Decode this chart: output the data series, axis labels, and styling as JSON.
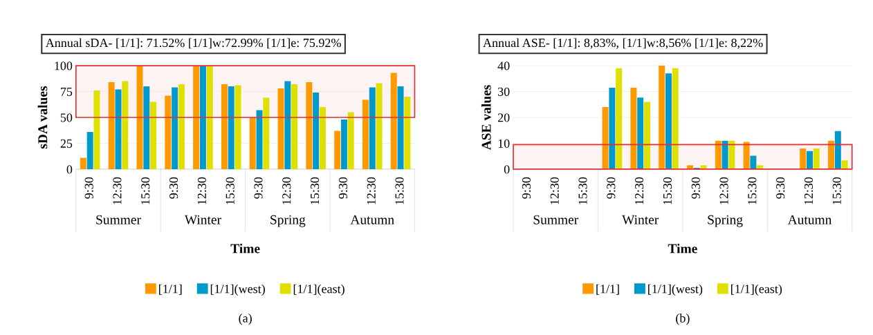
{
  "chart_data": [
    {
      "type": "bar",
      "title": "Annual sDA- [1/1]: 71.52% [1/1]w:72.99% [1/1]e: 75.92%",
      "xlabel": "Time",
      "ylabel": "sDA values",
      "categories": [
        "9:30",
        "12:30",
        "15:30",
        "9:30",
        "12:30",
        "15:30",
        "9:30",
        "12:30",
        "15:30",
        "9:30",
        "12:30",
        "15:30"
      ],
      "series": [
        {
          "name": "[1/1]",
          "color": "#ff9900",
          "values": [
            11,
            84,
            100,
            71,
            100,
            82,
            50,
            78,
            84,
            37,
            67,
            93
          ]
        },
        {
          "name": "[1/1](west)",
          "color": "#0099cc",
          "values": [
            36,
            77,
            80,
            79,
            100,
            80,
            57,
            85,
            74,
            48,
            79,
            80
          ]
        },
        {
          "name": "[1/1](east)",
          "color": "#e0e000",
          "values": [
            76,
            85,
            65,
            82,
            100,
            81,
            69,
            82,
            60,
            55,
            83,
            70
          ]
        }
      ],
      "ylim": [
        0,
        100
      ],
      "yticks": [
        0,
        25,
        50,
        75,
        100
      ],
      "grid": "y",
      "legend": "bottom",
      "bands": [
        {
          "axis": "y",
          "from": 50,
          "to": 100,
          "color": "#e03030"
        }
      ],
      "annotations": [
        "Summer",
        "Winter",
        "Spring",
        "Autumn",
        "(a)"
      ]
    },
    {
      "type": "bar",
      "title": "Annual ASE- [1/1]: 8,83%, [1/1]w:8,56% [1/1]e: 8,22%",
      "xlabel": "Time",
      "ylabel": "ASE values",
      "categories": [
        "9:30",
        "12:30",
        "15:30",
        "9:30",
        "12:30",
        "15:30",
        "9:30",
        "12:30",
        "15:30",
        "9:30",
        "12:30",
        "15:30"
      ],
      "series": [
        {
          "name": "[1/1]",
          "color": "#ff9900",
          "values": [
            0,
            0,
            0,
            24,
            31.5,
            40,
            1.5,
            11,
            10.5,
            0,
            8,
            11
          ]
        },
        {
          "name": "[1/1](west)",
          "color": "#0099cc",
          "values": [
            0,
            0,
            0,
            31.5,
            27.7,
            37,
            0.5,
            11,
            5.2,
            0,
            7,
            14.7
          ]
        },
        {
          "name": "[1/1](east)",
          "color": "#e0e000",
          "values": [
            0,
            0,
            0,
            39,
            26,
            39,
            1.5,
            11,
            1.5,
            0,
            8,
            3.4
          ]
        }
      ],
      "ylim": [
        0,
        40
      ],
      "yticks": [
        0,
        10,
        20,
        30,
        40
      ],
      "grid": "y",
      "legend": "bottom",
      "bands": [
        {
          "axis": "y",
          "from": 0,
          "to": 9.5,
          "color": "#e03030"
        }
      ],
      "annotations": [
        "Summer",
        "Winter",
        "Spring",
        "Autumn",
        "(b)"
      ]
    }
  ]
}
